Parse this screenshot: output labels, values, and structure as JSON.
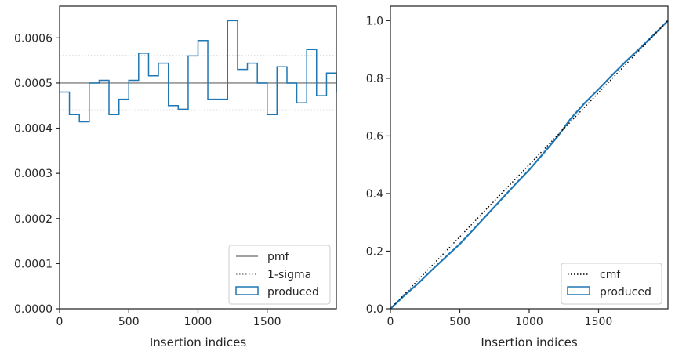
{
  "chart_data": [
    {
      "type": "histogram-step",
      "xlabel": "Insertion indices",
      "ylabel": "",
      "xlim": [
        0,
        2000
      ],
      "ylim": [
        0,
        0.00067
      ],
      "xticks": [
        "0",
        "500",
        "1000",
        "1500"
      ],
      "yticks": [
        "0.0000",
        "0.0001",
        "0.0002",
        "0.0003",
        "0.0004",
        "0.0005",
        "0.0006"
      ],
      "ytick_values": [
        0,
        0.0001,
        0.0002,
        0.0003,
        0.0004,
        0.0005,
        0.0006
      ],
      "xtick_values": [
        0,
        500,
        1000,
        1500
      ],
      "bin_edges": [
        0,
        71,
        143,
        214,
        286,
        357,
        429,
        500,
        571,
        643,
        714,
        786,
        857,
        929,
        1000,
        1071,
        1143,
        1214,
        1286,
        1357,
        1429,
        1500,
        1571,
        1643,
        1714,
        1786,
        1857,
        1929,
        2000
      ],
      "values": [
        0.00048,
        0.00043,
        0.000414,
        0.0005,
        0.000506,
        0.00043,
        0.000464,
        0.000506,
        0.000566,
        0.000516,
        0.000544,
        0.00045,
        0.000442,
        0.00056,
        0.000594,
        0.000464,
        0.000464,
        0.000638,
        0.00053,
        0.000544,
        0.0005,
        0.00043,
        0.000536,
        0.0005,
        0.000456,
        0.000574,
        0.000472,
        0.000522,
        0.00048
      ],
      "reference_lines": {
        "pmf": 0.0005,
        "sigma_upper": 0.00056,
        "sigma_lower": 0.00044
      },
      "legend": {
        "placement": "lower-right",
        "entries": [
          "pmf",
          "1-sigma",
          "produced"
        ]
      },
      "colors": {
        "produced": "#1f77b4",
        "pmf": "#808080",
        "sigma": "#808080"
      }
    },
    {
      "type": "line",
      "xlabel": "Insertion indices",
      "ylabel": "",
      "xlim": [
        0,
        2000
      ],
      "ylim": [
        0,
        1.05
      ],
      "xticks": [
        "0",
        "500",
        "1000",
        "1500"
      ],
      "xtick_values": [
        0,
        500,
        1000,
        1500
      ],
      "yticks": [
        "0.0",
        "0.2",
        "0.4",
        "0.6",
        "0.8",
        "1.0"
      ],
      "ytick_values": [
        0,
        0.2,
        0.4,
        0.6,
        0.8,
        1.0
      ],
      "cmf": {
        "x": [
          0,
          2000
        ],
        "y": [
          0,
          1.0
        ]
      },
      "produced": {
        "x": [
          0,
          100,
          200,
          300,
          400,
          500,
          600,
          700,
          800,
          900,
          1000,
          1100,
          1200,
          1300,
          1400,
          1500,
          1600,
          1700,
          1800,
          1900,
          2000
        ],
        "y": [
          0,
          0.046,
          0.088,
          0.135,
          0.18,
          0.225,
          0.276,
          0.328,
          0.38,
          0.432,
          0.482,
          0.538,
          0.595,
          0.66,
          0.714,
          0.762,
          0.812,
          0.86,
          0.905,
          0.952,
          1.0
        ]
      },
      "legend": {
        "placement": "lower-right",
        "entries": [
          "cmf",
          "produced"
        ]
      },
      "colors": {
        "produced": "#1f77b4",
        "cmf": "#000000"
      }
    }
  ]
}
